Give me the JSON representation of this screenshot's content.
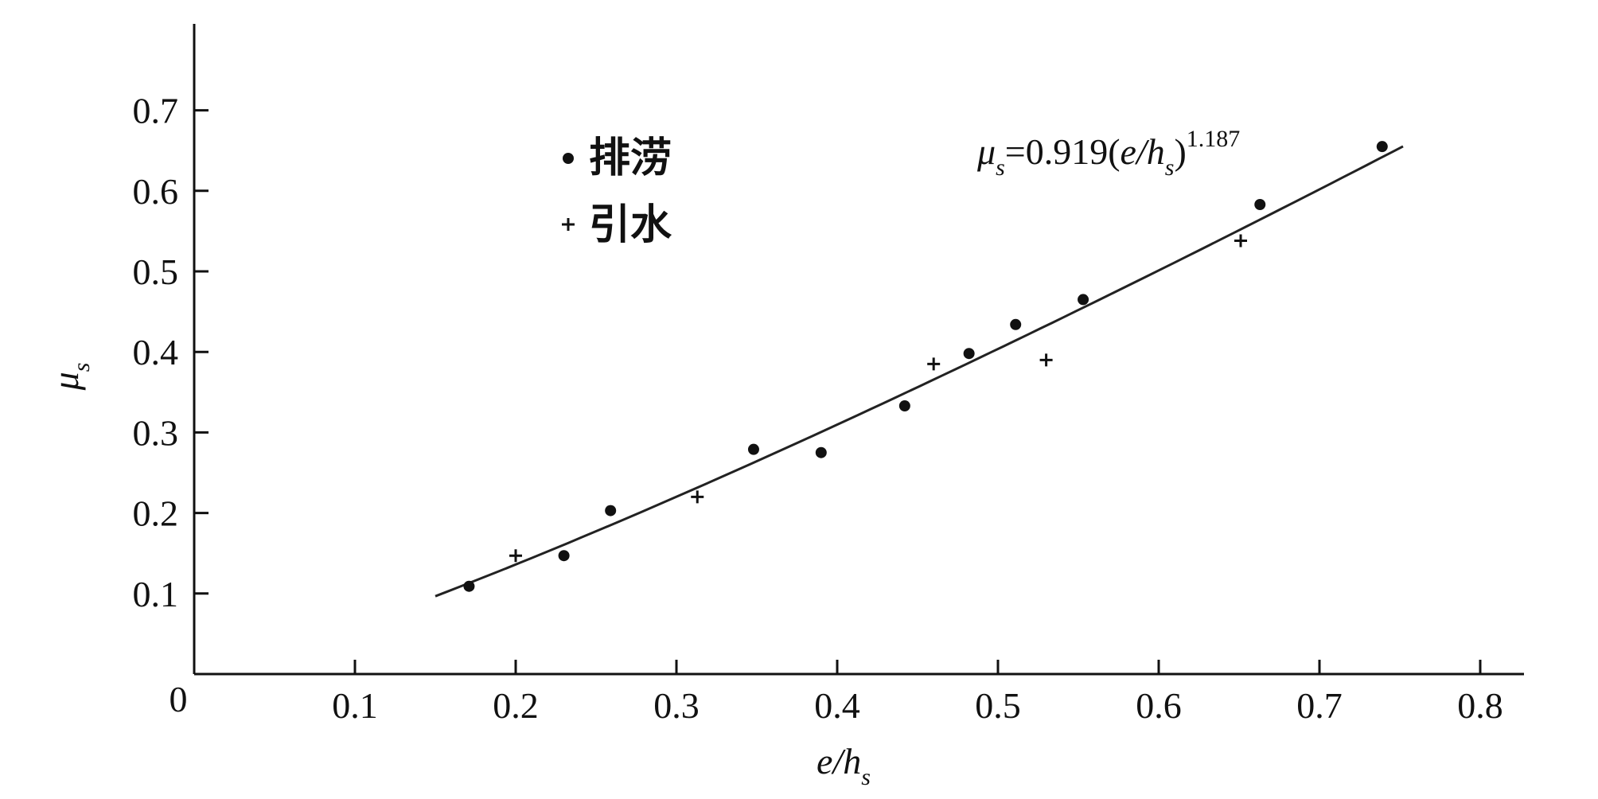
{
  "chart_data": {
    "type": "scatter",
    "xlabel": {
      "main": "e/h",
      "sub": "s"
    },
    "ylabel": {
      "main": "μ",
      "sub": "s"
    },
    "xlim": [
      0,
      0.82
    ],
    "ylim": [
      0,
      0.8
    ],
    "origin_label": "0",
    "x_ticks": [
      "0.1",
      "0.2",
      "0.3",
      "0.4",
      "0.5",
      "0.6",
      "0.7",
      "0.8"
    ],
    "y_ticks": [
      "0.1",
      "0.2",
      "0.3",
      "0.4",
      "0.5",
      "0.6",
      "0.7"
    ],
    "grid": false,
    "legend_position": "top-left",
    "series": [
      {
        "name": "排涝",
        "marker": "dot",
        "points": [
          [
            0.171,
            0.109
          ],
          [
            0.23,
            0.147
          ],
          [
            0.259,
            0.203
          ],
          [
            0.348,
            0.279
          ],
          [
            0.39,
            0.275
          ],
          [
            0.442,
            0.333
          ],
          [
            0.482,
            0.398
          ],
          [
            0.511,
            0.434
          ],
          [
            0.553,
            0.465
          ],
          [
            0.663,
            0.583
          ],
          [
            0.739,
            0.655
          ]
        ]
      },
      {
        "name": "引水",
        "marker": "plus",
        "points": [
          [
            0.2,
            0.147
          ],
          [
            0.313,
            0.22
          ],
          [
            0.46,
            0.385
          ],
          [
            0.53,
            0.39
          ],
          [
            0.651,
            0.538
          ]
        ]
      }
    ],
    "fit": {
      "coefficient": 0.919,
      "exponent": 1.187,
      "x_range": [
        0.15,
        0.752
      ],
      "equation": {
        "lhs": "μ",
        "lhs_sub": "s",
        "eq_coef": "=0.919(",
        "var": "e/h",
        "var_sub": "s",
        "close": ")",
        "exp": "1.187"
      }
    },
    "colors": {
      "axis": "#111111",
      "marker": "#111111",
      "fit_line": "#222222"
    }
  }
}
